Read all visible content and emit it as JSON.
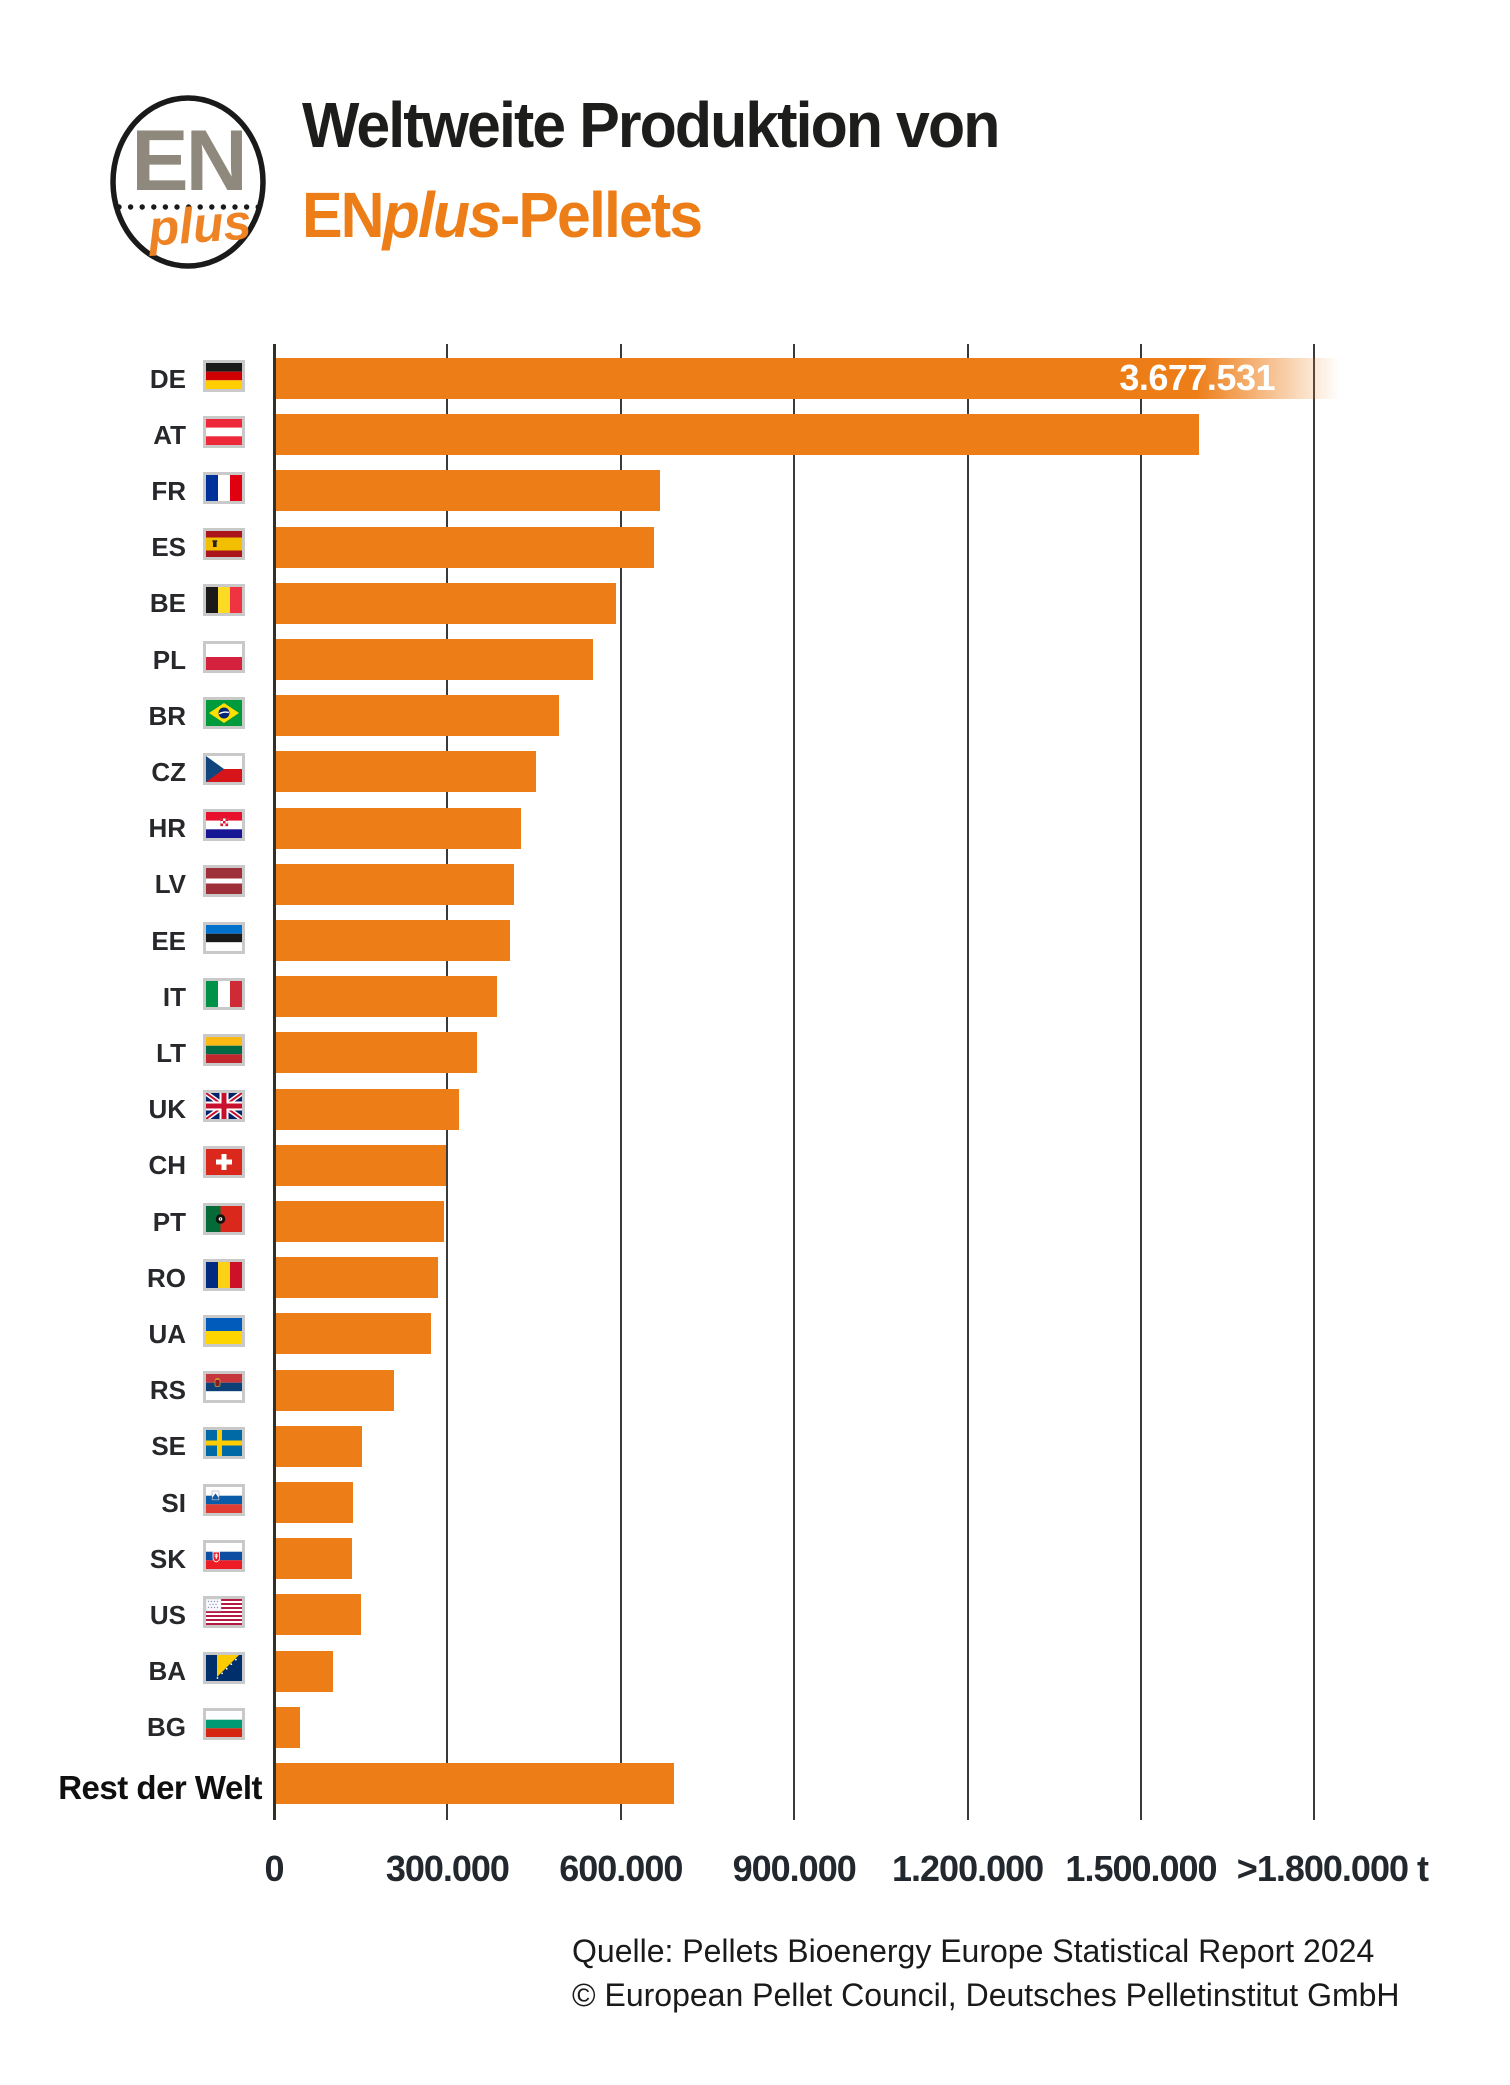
{
  "header": {
    "logo": {
      "top_text": "EN",
      "bottom_text": "plus"
    },
    "title_line1": "Weltweite Produktion von",
    "title_line2_prefix": "EN",
    "title_line2_italic": "plus",
    "title_line2_suffix": "-Pellets"
  },
  "colors": {
    "bar_orange": "#ed7d17",
    "title_orange": "#ed7d17",
    "logo_gray": "#8f887c",
    "title_black": "#1d1d1b",
    "axis_text": "#23282e"
  },
  "chart_data": {
    "type": "bar",
    "orientation": "horizontal",
    "title": "Weltweite Produktion von ENplus-Pellets",
    "unit": "t",
    "xlim": [
      0,
      1800000
    ],
    "gridlines": true,
    "x_ticks": [
      {
        "value": 0,
        "label": "0"
      },
      {
        "value": 300000,
        "label": "300.000"
      },
      {
        "value": 600000,
        "label": "600.000"
      },
      {
        "value": 900000,
        "label": "900.000"
      },
      {
        "value": 1200000,
        "label": "1.200.000"
      },
      {
        "value": 1500000,
        "label": "1.500.000"
      },
      {
        "value": 1800000,
        "label": ">1.800.000 t"
      }
    ],
    "categories": [
      "DE",
      "AT",
      "FR",
      "ES",
      "BE",
      "PL",
      "BR",
      "CZ",
      "HR",
      "LV",
      "EE",
      "IT",
      "LT",
      "UK",
      "CH",
      "PT",
      "RO",
      "UA",
      "RS",
      "SE",
      "SI",
      "SK",
      "US",
      "BA",
      "BG",
      "Rest der Welt"
    ],
    "flags": [
      "de",
      "at",
      "fr",
      "es",
      "be",
      "pl",
      "br",
      "cz",
      "hr",
      "lv",
      "ee",
      "it",
      "lt",
      "uk",
      "ch",
      "pt",
      "ro",
      "ua",
      "rs",
      "se",
      "si",
      "sk",
      "us",
      "ba",
      "bg",
      null
    ],
    "values": [
      3677531,
      1600000,
      665000,
      655000,
      590000,
      550000,
      490000,
      450000,
      425000,
      413000,
      405000,
      383000,
      349000,
      318000,
      294000,
      291000,
      280000,
      269000,
      205000,
      149000,
      134000,
      131000,
      147000,
      99000,
      42000,
      690000
    ],
    "value_labels": {
      "DE": "3.677.531"
    },
    "overflow_categories": [
      "DE"
    ]
  },
  "footer": {
    "line1": "Quelle: Pellets Bioenergy Europe Statistical Report 2024",
    "line2": "© European Pellet Council, Deutsches Pelletinstitut GmbH"
  }
}
